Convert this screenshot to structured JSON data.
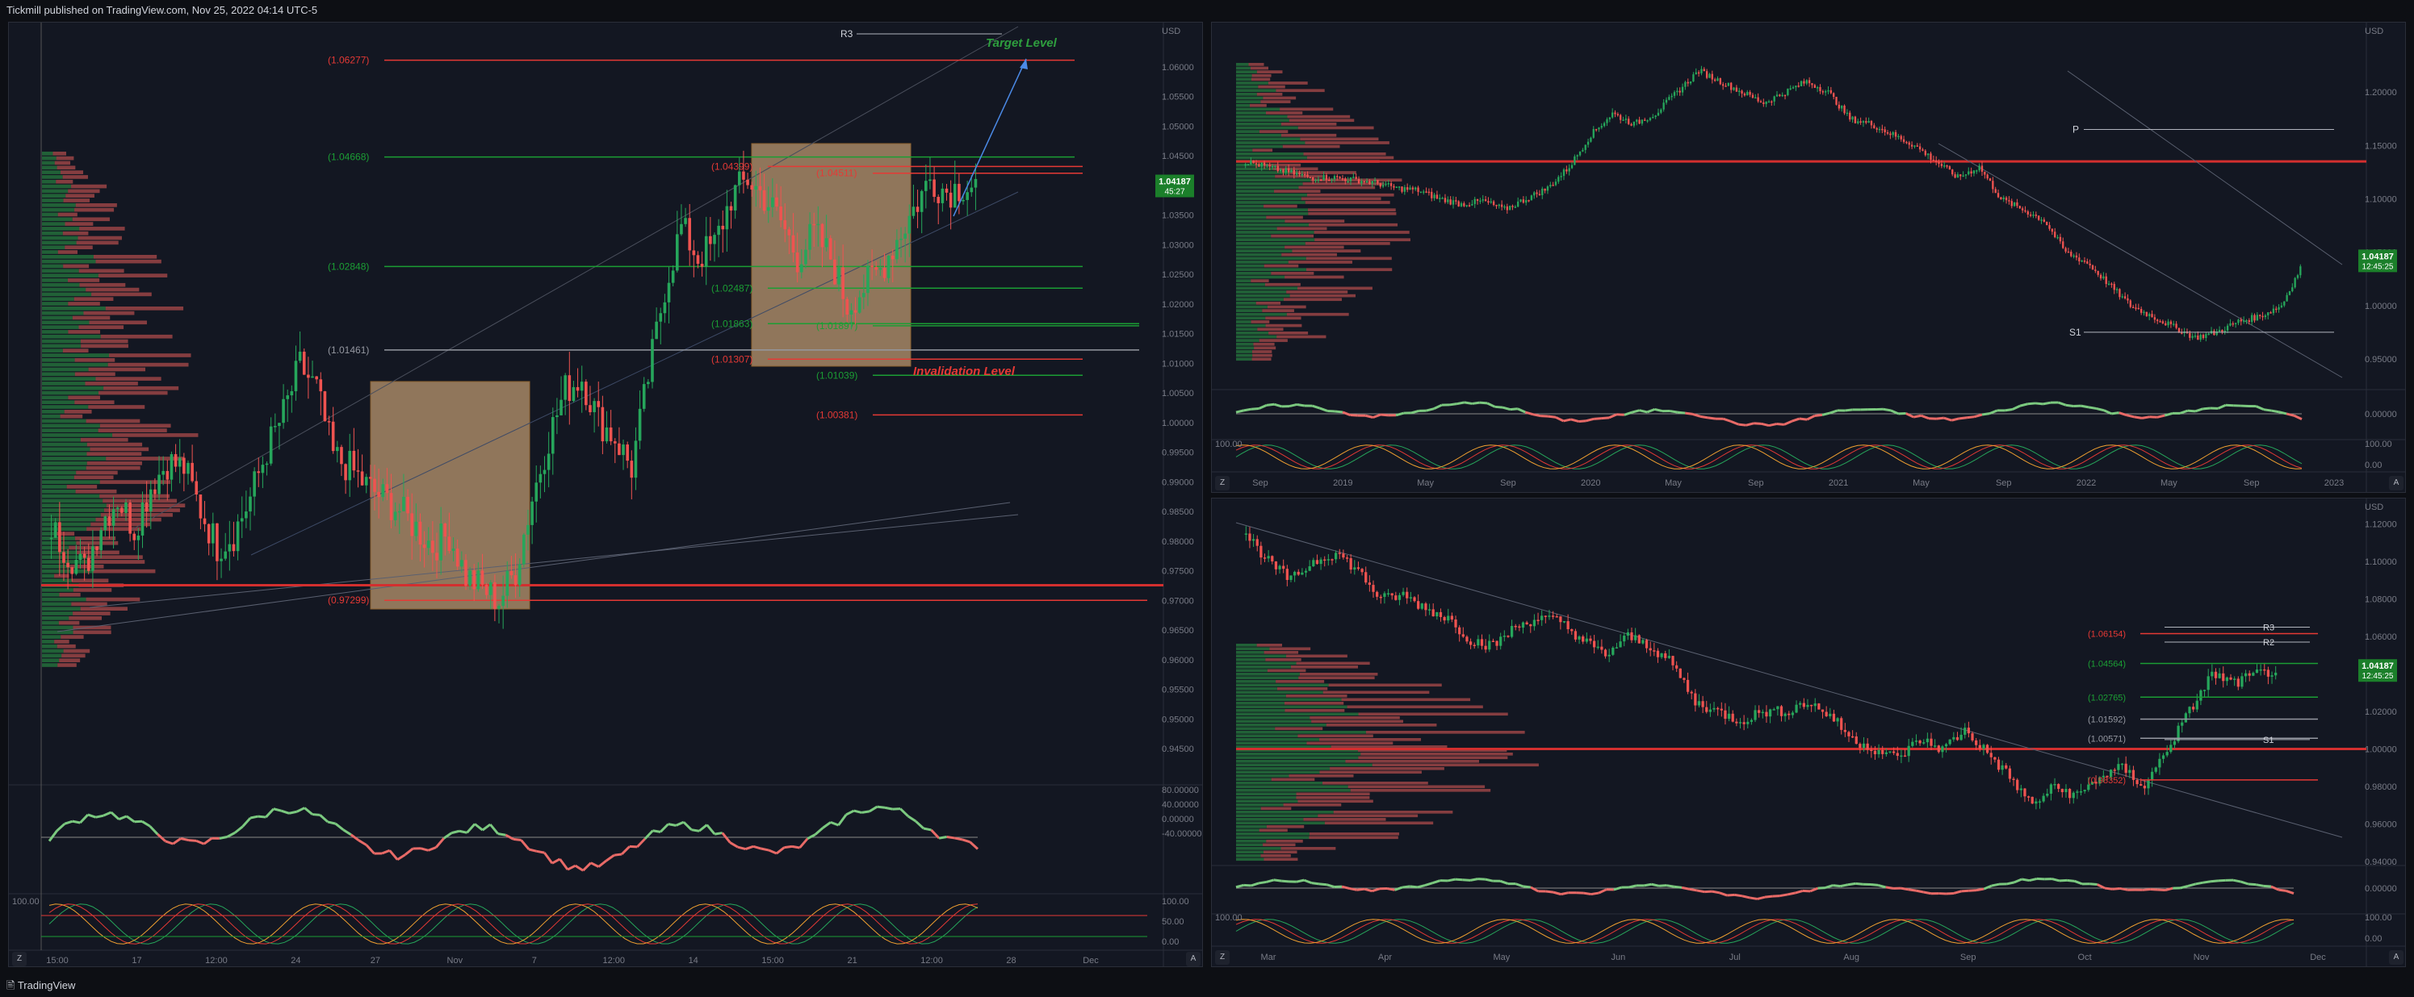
{
  "header": {
    "publish_line": "Tickmill published on TradingView.com, Nov 25, 2022 04:14 UTC-5"
  },
  "footer": {
    "brand": "TradingView",
    "btn_z": "Z",
    "btn_a": "A"
  },
  "colors": {
    "bg": "#131722",
    "up": "#26a65b",
    "down": "#ef5350",
    "green": "#1b9e34",
    "red": "#e53935",
    "box": "#f7c48a",
    "grid": "#2a2e39",
    "text": "#787b86"
  },
  "left_chart": {
    "price_axis": [
      "1.06000",
      "1.05500",
      "1.05000",
      "1.04500",
      "1.04000",
      "1.03500",
      "1.03000",
      "1.02500",
      "1.02000",
      "1.01500",
      "1.01000",
      "1.00500",
      "1.00000",
      "0.99500",
      "0.99000",
      "0.98500",
      "0.98000",
      "0.97500",
      "0.97000",
      "0.96500",
      "0.96000",
      "0.95500",
      "0.95000",
      "0.94500"
    ],
    "price_top": "USD",
    "time_axis": [
      "15:00",
      "17",
      "12:00",
      "24",
      "27",
      "Nov",
      "7",
      "12:00",
      "14",
      "15:00",
      "21",
      "12:00",
      "28",
      "Dec"
    ],
    "current_price": "1.04187",
    "countdown": "45:27",
    "fib_levels": [
      {
        "label": "(1.06277)",
        "color": "red"
      },
      {
        "label": "(1.04668)",
        "color": "green"
      },
      {
        "label": "(1.04399)",
        "color": "red"
      },
      {
        "label": "(1.04511)",
        "color": "red"
      },
      {
        "label": "(1.02848)",
        "color": "green"
      },
      {
        "label": "(1.02487)",
        "color": "green"
      },
      {
        "label": "(1.01863)",
        "color": "green"
      },
      {
        "label": "(1.01897)",
        "color": "green"
      },
      {
        "label": "(1.01461)",
        "color": "gray"
      },
      {
        "label": "(1.01307)",
        "color": "red"
      },
      {
        "label": "(1.01039)",
        "color": "green"
      },
      {
        "label": "(1.00381)",
        "color": "red"
      },
      {
        "label": "(0.97299)",
        "color": "red"
      }
    ],
    "pivot_labels": [
      "R3"
    ],
    "annotations": {
      "target": "Target Level",
      "invalidation": "Invalidation Level"
    },
    "osc_axis": [
      "80.00000",
      "40.00000",
      "0.00000",
      "-40.00000"
    ],
    "stoch_axis": [
      "100.00",
      "50.00",
      "0.00"
    ],
    "stoch_left": "100.00"
  },
  "right_top_chart": {
    "price_axis": [
      "1.20000",
      "1.15000",
      "1.10000",
      "1.05000",
      "1.00000",
      "0.95000"
    ],
    "price_top": "USD",
    "time_axis": [
      "Sep",
      "2019",
      "May",
      "Sep",
      "2020",
      "May",
      "Sep",
      "2021",
      "May",
      "Sep",
      "2022",
      "May",
      "Sep",
      "2023"
    ],
    "current_price": "1.04187",
    "countdown": "12:45:25",
    "pivot_labels": [
      "P",
      "S1"
    ],
    "osc_axis": [
      "0.00000"
    ],
    "stoch_axis": [
      "100.00",
      "0.00"
    ],
    "stoch_left": "100.00"
  },
  "right_bottom_chart": {
    "price_axis": [
      "1.12000",
      "1.10000",
      "1.08000",
      "1.06000",
      "1.04000",
      "1.02000",
      "1.00000",
      "0.98000",
      "0.96000",
      "0.94000"
    ],
    "price_top": "USD",
    "time_axis": [
      "Mar",
      "Apr",
      "May",
      "Jun",
      "Jul",
      "Aug",
      "Sep",
      "Oct",
      "Nov",
      "Dec"
    ],
    "current_price": "1.04187",
    "countdown": "12:45:25",
    "fib_levels": [
      {
        "label": "(1.06154)",
        "color": "red"
      },
      {
        "label": "(1.04564)",
        "color": "green"
      },
      {
        "label": "(1.02765)",
        "color": "green"
      },
      {
        "label": "(1.01592)",
        "color": "gray"
      },
      {
        "label": "(1.00571)",
        "color": "gray"
      },
      {
        "label": "(0.98352)",
        "color": "red"
      }
    ],
    "pivot_labels": [
      "R3",
      "R2",
      "S1"
    ],
    "osc_axis": [
      "0.00000"
    ],
    "stoch_axis": [
      "100.00",
      "0.00"
    ],
    "stoch_left": "100.00"
  },
  "chart_data": [
    {
      "type": "candlestick",
      "pair_quote": "USD",
      "timeframe_panel": "left",
      "y_range": [
        0.945,
        1.065
      ],
      "levels": [
        1.06277,
        1.04668,
        1.04511,
        1.04399,
        1.02848,
        1.02487,
        1.01897,
        1.01863,
        1.01461,
        1.01307,
        1.01039,
        1.00381,
        0.97299
      ],
      "last": 1.04187,
      "close_path": [
        0.985,
        0.981,
        0.978,
        0.986,
        0.99,
        0.985,
        0.992,
        0.996,
        0.995,
        0.988,
        0.982,
        0.984,
        0.99,
        0.998,
        1.004,
        1.012,
        1.008,
        0.997,
        0.995,
        0.992,
        0.99,
        0.988,
        0.985,
        0.982,
        0.984,
        0.977,
        0.975,
        0.973,
        0.978,
        0.99,
        1.0,
        1.008,
        1.01,
        1.003,
        1.0,
        0.995,
        1.01,
        1.025,
        1.035,
        1.03,
        1.032,
        1.04,
        1.043,
        1.04,
        1.036,
        1.03,
        1.034,
        1.03,
        1.022,
        1.025,
        1.028,
        1.033,
        1.038,
        1.043,
        1.041,
        1.042,
        1.042
      ]
    },
    {
      "type": "candlestick",
      "timeframe_panel": "right-top",
      "y_range": [
        0.925,
        1.25
      ],
      "last": 1.04187,
      "close_path": [
        1.135,
        1.13,
        1.125,
        1.12,
        1.12,
        1.118,
        1.115,
        1.11,
        1.108,
        1.1,
        1.095,
        1.098,
        1.09,
        1.1,
        1.11,
        1.13,
        1.16,
        1.18,
        1.17,
        1.18,
        1.2,
        1.22,
        1.21,
        1.2,
        1.19,
        1.2,
        1.21,
        1.2,
        1.175,
        1.17,
        1.16,
        1.15,
        1.135,
        1.12,
        1.13,
        1.1,
        1.09,
        1.08,
        1.05,
        1.04,
        1.02,
        1.0,
        0.99,
        0.98,
        0.97,
        0.975,
        0.985,
        0.99,
        1.0,
        1.04
      ]
    },
    {
      "type": "candlestick",
      "timeframe_panel": "right-bottom",
      "y_range": [
        0.94,
        1.125
      ],
      "last": 1.04187,
      "close_path": [
        1.115,
        1.1,
        1.09,
        1.1,
        1.105,
        1.095,
        1.08,
        1.082,
        1.075,
        1.07,
        1.058,
        1.055,
        1.065,
        1.07,
        1.068,
        1.058,
        1.05,
        1.06,
        1.055,
        1.045,
        1.025,
        1.02,
        1.015,
        1.02,
        1.02,
        1.025,
        1.018,
        1.005,
        1.0,
        0.995,
        1.005,
        1.0,
        1.01,
        0.998,
        0.985,
        0.97,
        0.98,
        0.975,
        0.985,
        0.99,
        0.98,
        1.0,
        1.02,
        1.04,
        1.035,
        1.04,
        1.042
      ]
    }
  ]
}
